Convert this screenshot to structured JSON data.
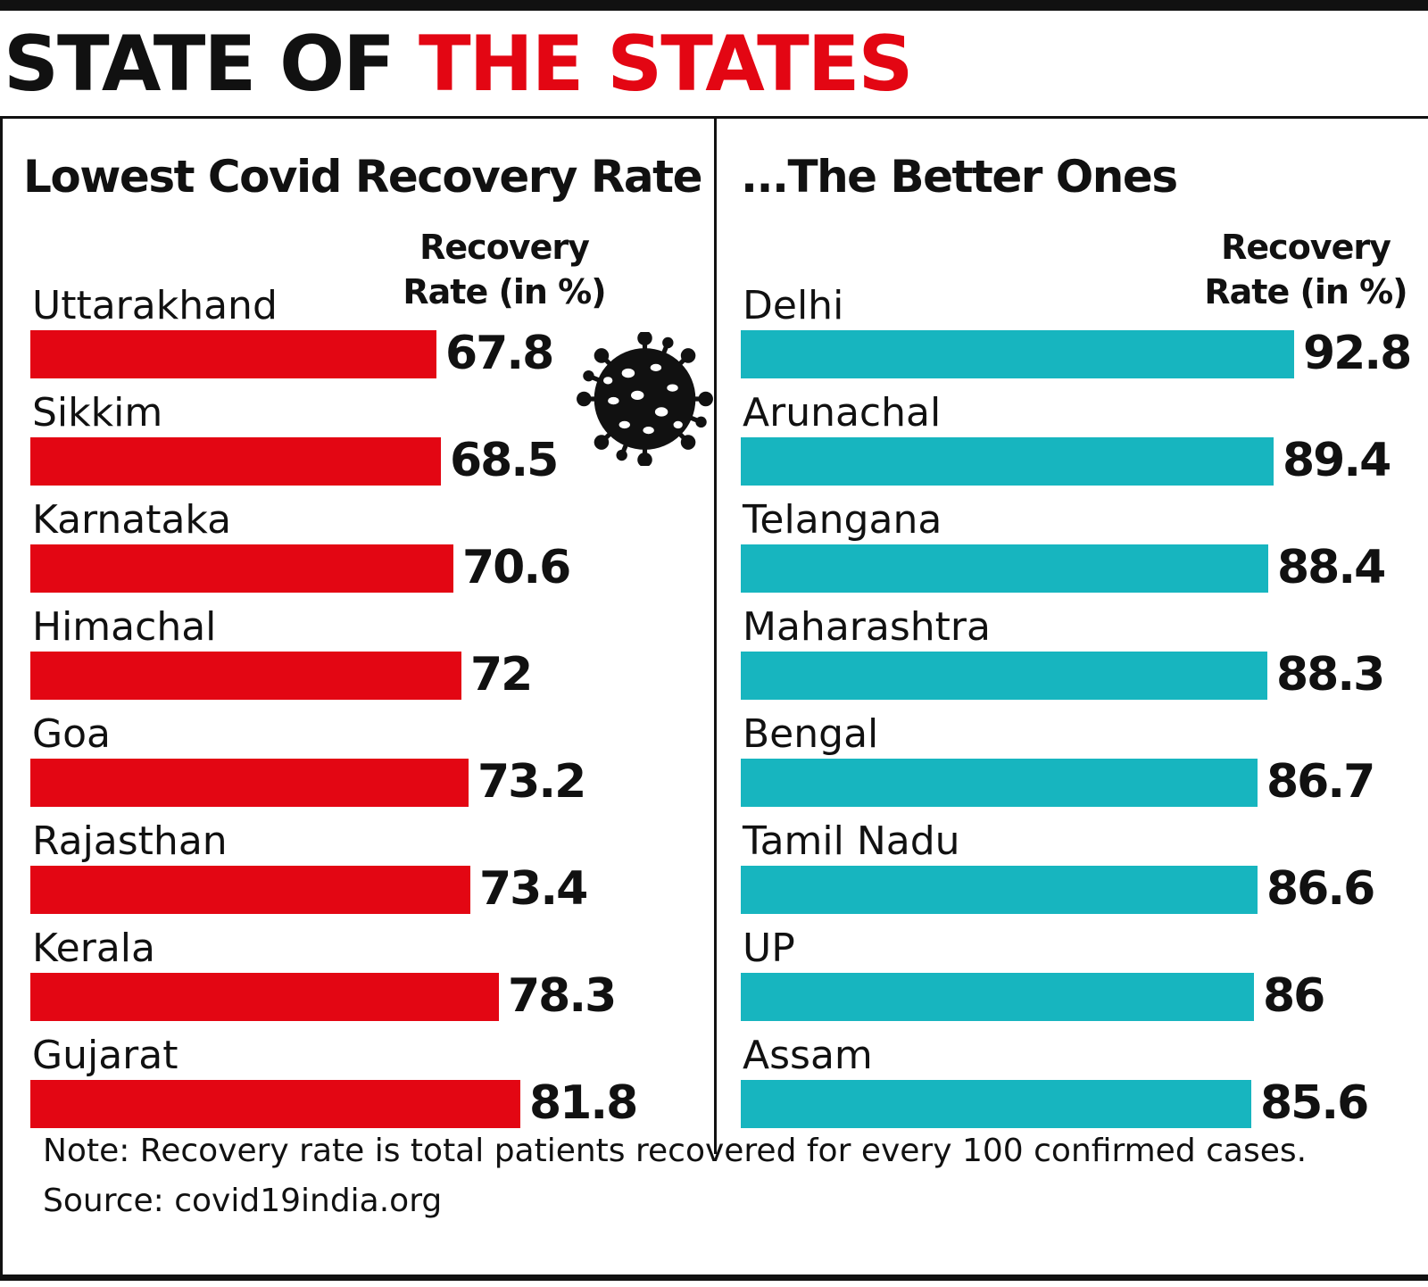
{
  "title": {
    "part1": "STATE OF ",
    "part2": "THE STATES"
  },
  "colors": {
    "low": "#e30613",
    "high": "#17b5bf",
    "text": "#111111"
  },
  "icon": "virus-icon",
  "chart_data": [
    {
      "type": "bar",
      "orientation": "horizontal",
      "title": "Lowest Covid Recovery Rate",
      "value_header": "Recovery Rate (in %)",
      "categories": [
        "Uttarakhand",
        "Sikkim",
        "Karnataka",
        "Himachal",
        "Goa",
        "Rajasthan",
        "Kerala",
        "Gujarat"
      ],
      "values": [
        67.8,
        68.5,
        70.6,
        72,
        73.2,
        73.4,
        78.3,
        81.8
      ],
      "value_labels": [
        "67.8",
        "68.5",
        "70.6",
        "72",
        "73.2",
        "73.4",
        "78.3",
        "81.8"
      ],
      "color": "#e30613"
    },
    {
      "type": "bar",
      "orientation": "horizontal",
      "title": "...The Better Ones",
      "value_header": "Recovery Rate (in %)",
      "categories": [
        "Delhi",
        "Arunachal",
        "Telangana",
        "Maharashtra",
        "Bengal",
        "Tamil Nadu",
        "UP",
        "Assam"
      ],
      "values": [
        92.8,
        89.4,
        88.4,
        88.3,
        86.7,
        86.6,
        86,
        85.6
      ],
      "value_labels": [
        "92.8",
        "89.4",
        "88.4",
        "88.3",
        "86.7",
        "86.6",
        "86",
        "85.6"
      ],
      "color": "#17b5bf"
    }
  ],
  "left_header": {
    "line1": "Recovery",
    "line2": "Rate (in %)"
  },
  "right_header": {
    "line1": "Recovery",
    "line2": "Rate (in %)"
  },
  "note": "Note: Recovery rate is total patients recovered for every 100 confirmed cases.",
  "source": "Source: covid19india.org"
}
